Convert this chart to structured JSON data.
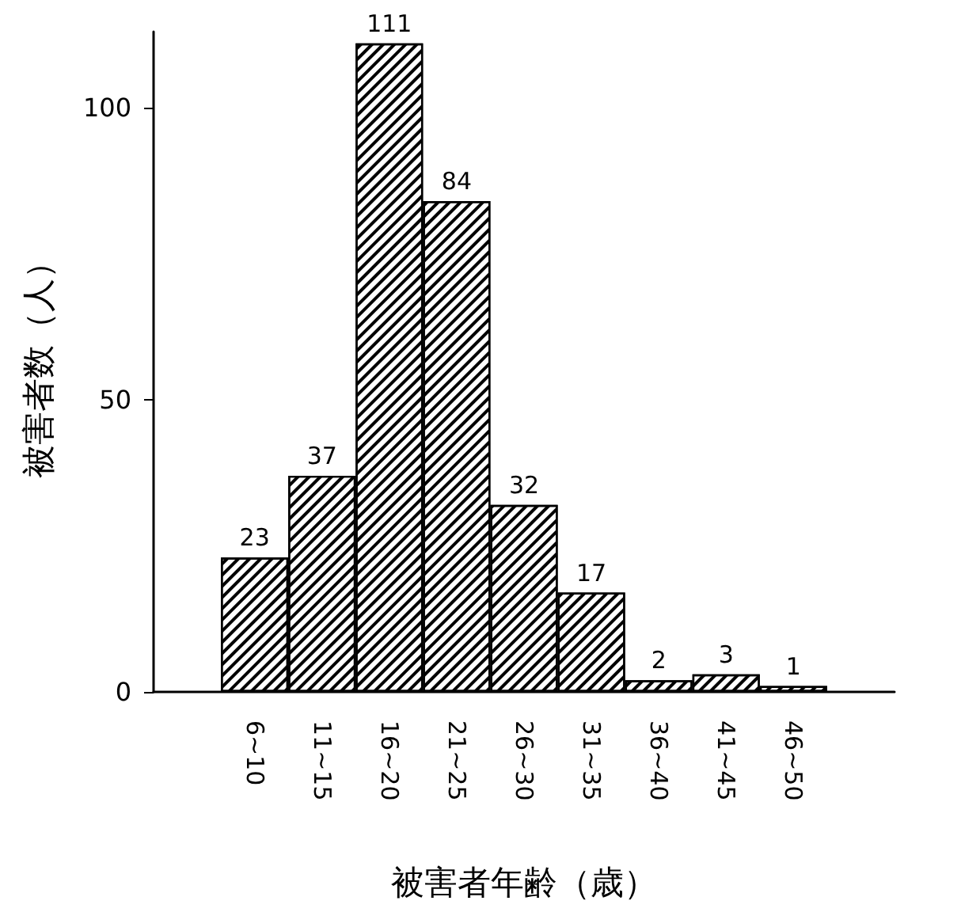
{
  "chart_data": {
    "type": "bar",
    "xlabel": "被害者年齢（歳）",
    "ylabel": "被害者数（人）",
    "categories": [
      "6~10",
      "11~15",
      "16~20",
      "21~25",
      "26~30",
      "31~35",
      "36~40",
      "41~45",
      "46~50"
    ],
    "values": [
      23,
      37,
      111,
      84,
      32,
      17,
      2,
      3,
      1
    ],
    "color": "#ffffff",
    "ylim": [
      0,
      113
    ],
    "yticks": [
      0,
      50,
      100
    ],
    "grid": false,
    "data_labels": true
  }
}
